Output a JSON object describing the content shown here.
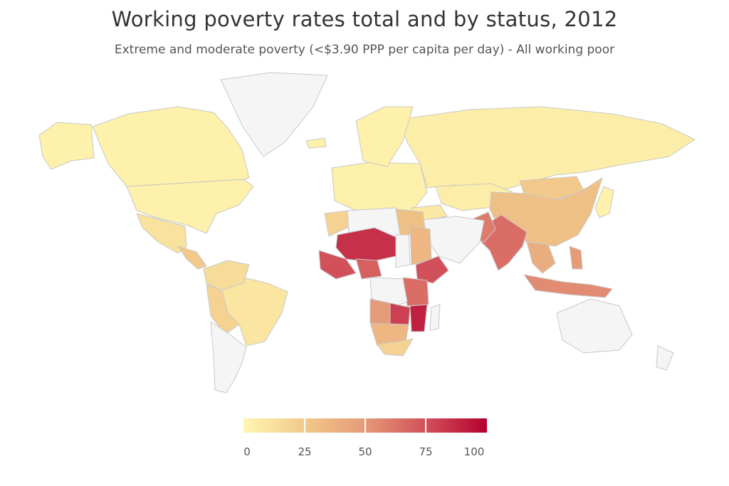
{
  "title": "Working poverty rates total and by status, 2012",
  "subtitle": "Extreme and moderate poverty (<$3.90 PPP per capita per day) - All working poor",
  "colors": {
    "no_data": "#f5f5f5",
    "border": "#c8c8c8",
    "scale": [
      "#fff7b0",
      "#f2c98a",
      "#e59a78",
      "#d2505a",
      "#b5002e"
    ]
  },
  "legend": {
    "min": 0,
    "max": 100,
    "labels": [
      "0",
      "25",
      "50",
      "75",
      "100"
    ]
  },
  "chart_data": {
    "type": "choropleth",
    "year": 2012,
    "value_range": [
      0,
      100
    ],
    "regions": [
      {
        "name": "United States",
        "value": 3
      },
      {
        "name": "Canada",
        "value": 3
      },
      {
        "name": "Alaska",
        "value": 3
      },
      {
        "name": "Mexico",
        "value": 12
      },
      {
        "name": "Central America",
        "value": 25
      },
      {
        "name": "Brazil",
        "value": 10
      },
      {
        "name": "Colombia/Venezuela",
        "value": 15
      },
      {
        "name": "Peru/Bolivia",
        "value": 20
      },
      {
        "name": "Argentina/Chile",
        "value": null
      },
      {
        "name": "Greenland",
        "value": null
      },
      {
        "name": "Russia",
        "value": 5
      },
      {
        "name": "Europe",
        "value": 4
      },
      {
        "name": "Scandinavia",
        "value": 3
      },
      {
        "name": "Iceland",
        "value": 3
      },
      {
        "name": "Turkey",
        "value": 8
      },
      {
        "name": "Kazakhstan",
        "value": 5
      },
      {
        "name": "China",
        "value": 30
      },
      {
        "name": "Mongolia",
        "value": 25
      },
      {
        "name": "India",
        "value": 65
      },
      {
        "name": "Pakistan",
        "value": 60
      },
      {
        "name": "Middle East",
        "value": null
      },
      {
        "name": "Japan",
        "value": 3
      },
      {
        "name": "Southeast Asia",
        "value": 40
      },
      {
        "name": "Indonesia",
        "value": 55
      },
      {
        "name": "Philippines",
        "value": 50
      },
      {
        "name": "Australia",
        "value": null
      },
      {
        "name": "New Zealand",
        "value": null
      },
      {
        "name": "Morocco",
        "value": 20
      },
      {
        "name": "Algeria/Libya",
        "value": null
      },
      {
        "name": "Egypt",
        "value": 30
      },
      {
        "name": "Mali/Niger",
        "value": 85
      },
      {
        "name": "West Africa",
        "value": 75
      },
      {
        "name": "Nigeria",
        "value": 70
      },
      {
        "name": "Sudan",
        "value": 35
      },
      {
        "name": "Chad",
        "value": null
      },
      {
        "name": "Ethiopia",
        "value": 75
      },
      {
        "name": "Kenya/Tanzania",
        "value": 65
      },
      {
        "name": "DR Congo",
        "value": null
      },
      {
        "name": "Angola",
        "value": 50
      },
      {
        "name": "Zambia",
        "value": 80
      },
      {
        "name": "Mozambique",
        "value": 90
      },
      {
        "name": "Namibia/Botswana",
        "value": 35
      },
      {
        "name": "South Africa",
        "value": 20
      },
      {
        "name": "Madagascar",
        "value": null
      }
    ]
  }
}
